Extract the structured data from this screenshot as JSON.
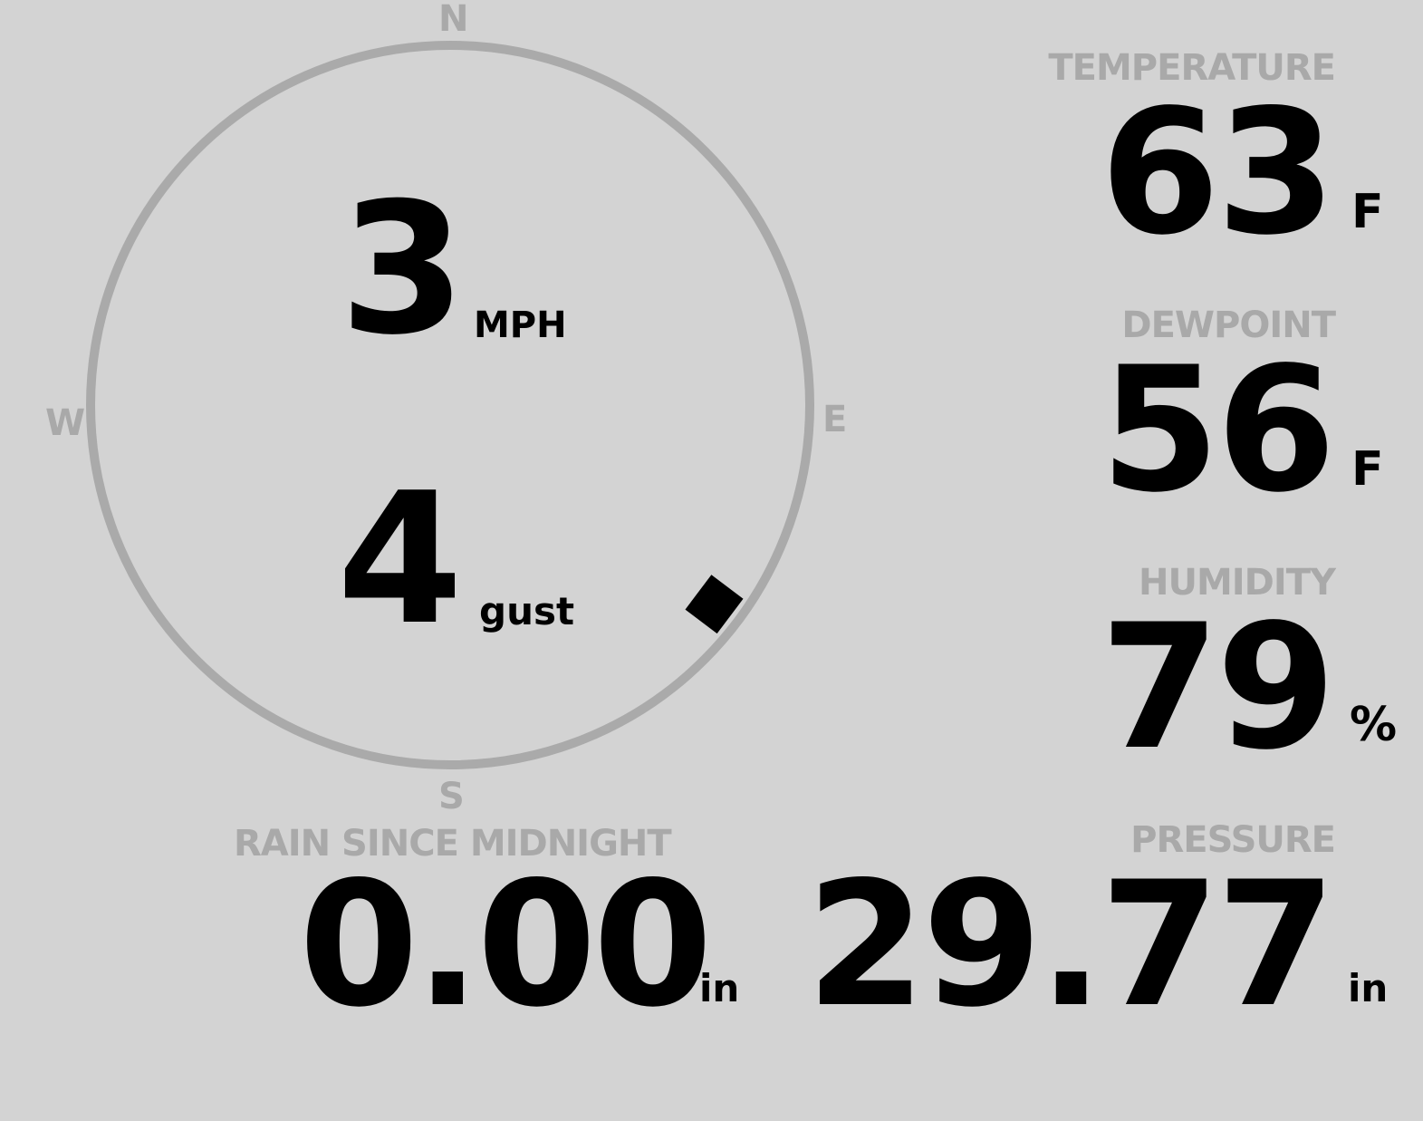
{
  "wind": {
    "compass": {
      "north": "N",
      "east": "E",
      "south": "S",
      "west": "W"
    },
    "speed": "3",
    "speed_unit": "MPH",
    "gust": "4",
    "gust_unit": "gust",
    "direction_degrees": 127,
    "ring_color": "#aaaaaa"
  },
  "temperature": {
    "label": "TEMPERATURE",
    "value": "63",
    "unit": "F"
  },
  "dewpoint": {
    "label": "DEWPOINT",
    "value": "56",
    "unit": "F"
  },
  "humidity": {
    "label": "HUMIDITY",
    "value": "79",
    "unit": "%"
  },
  "rain": {
    "label": "RAIN SINCE MIDNIGHT",
    "value": "0.00",
    "unit": "in"
  },
  "pressure": {
    "label": "PRESSURE",
    "value": "29.77",
    "unit": "in"
  },
  "colors": {
    "background": "#d3d3d3",
    "label": "#a9a9a9",
    "value": "#000000"
  }
}
